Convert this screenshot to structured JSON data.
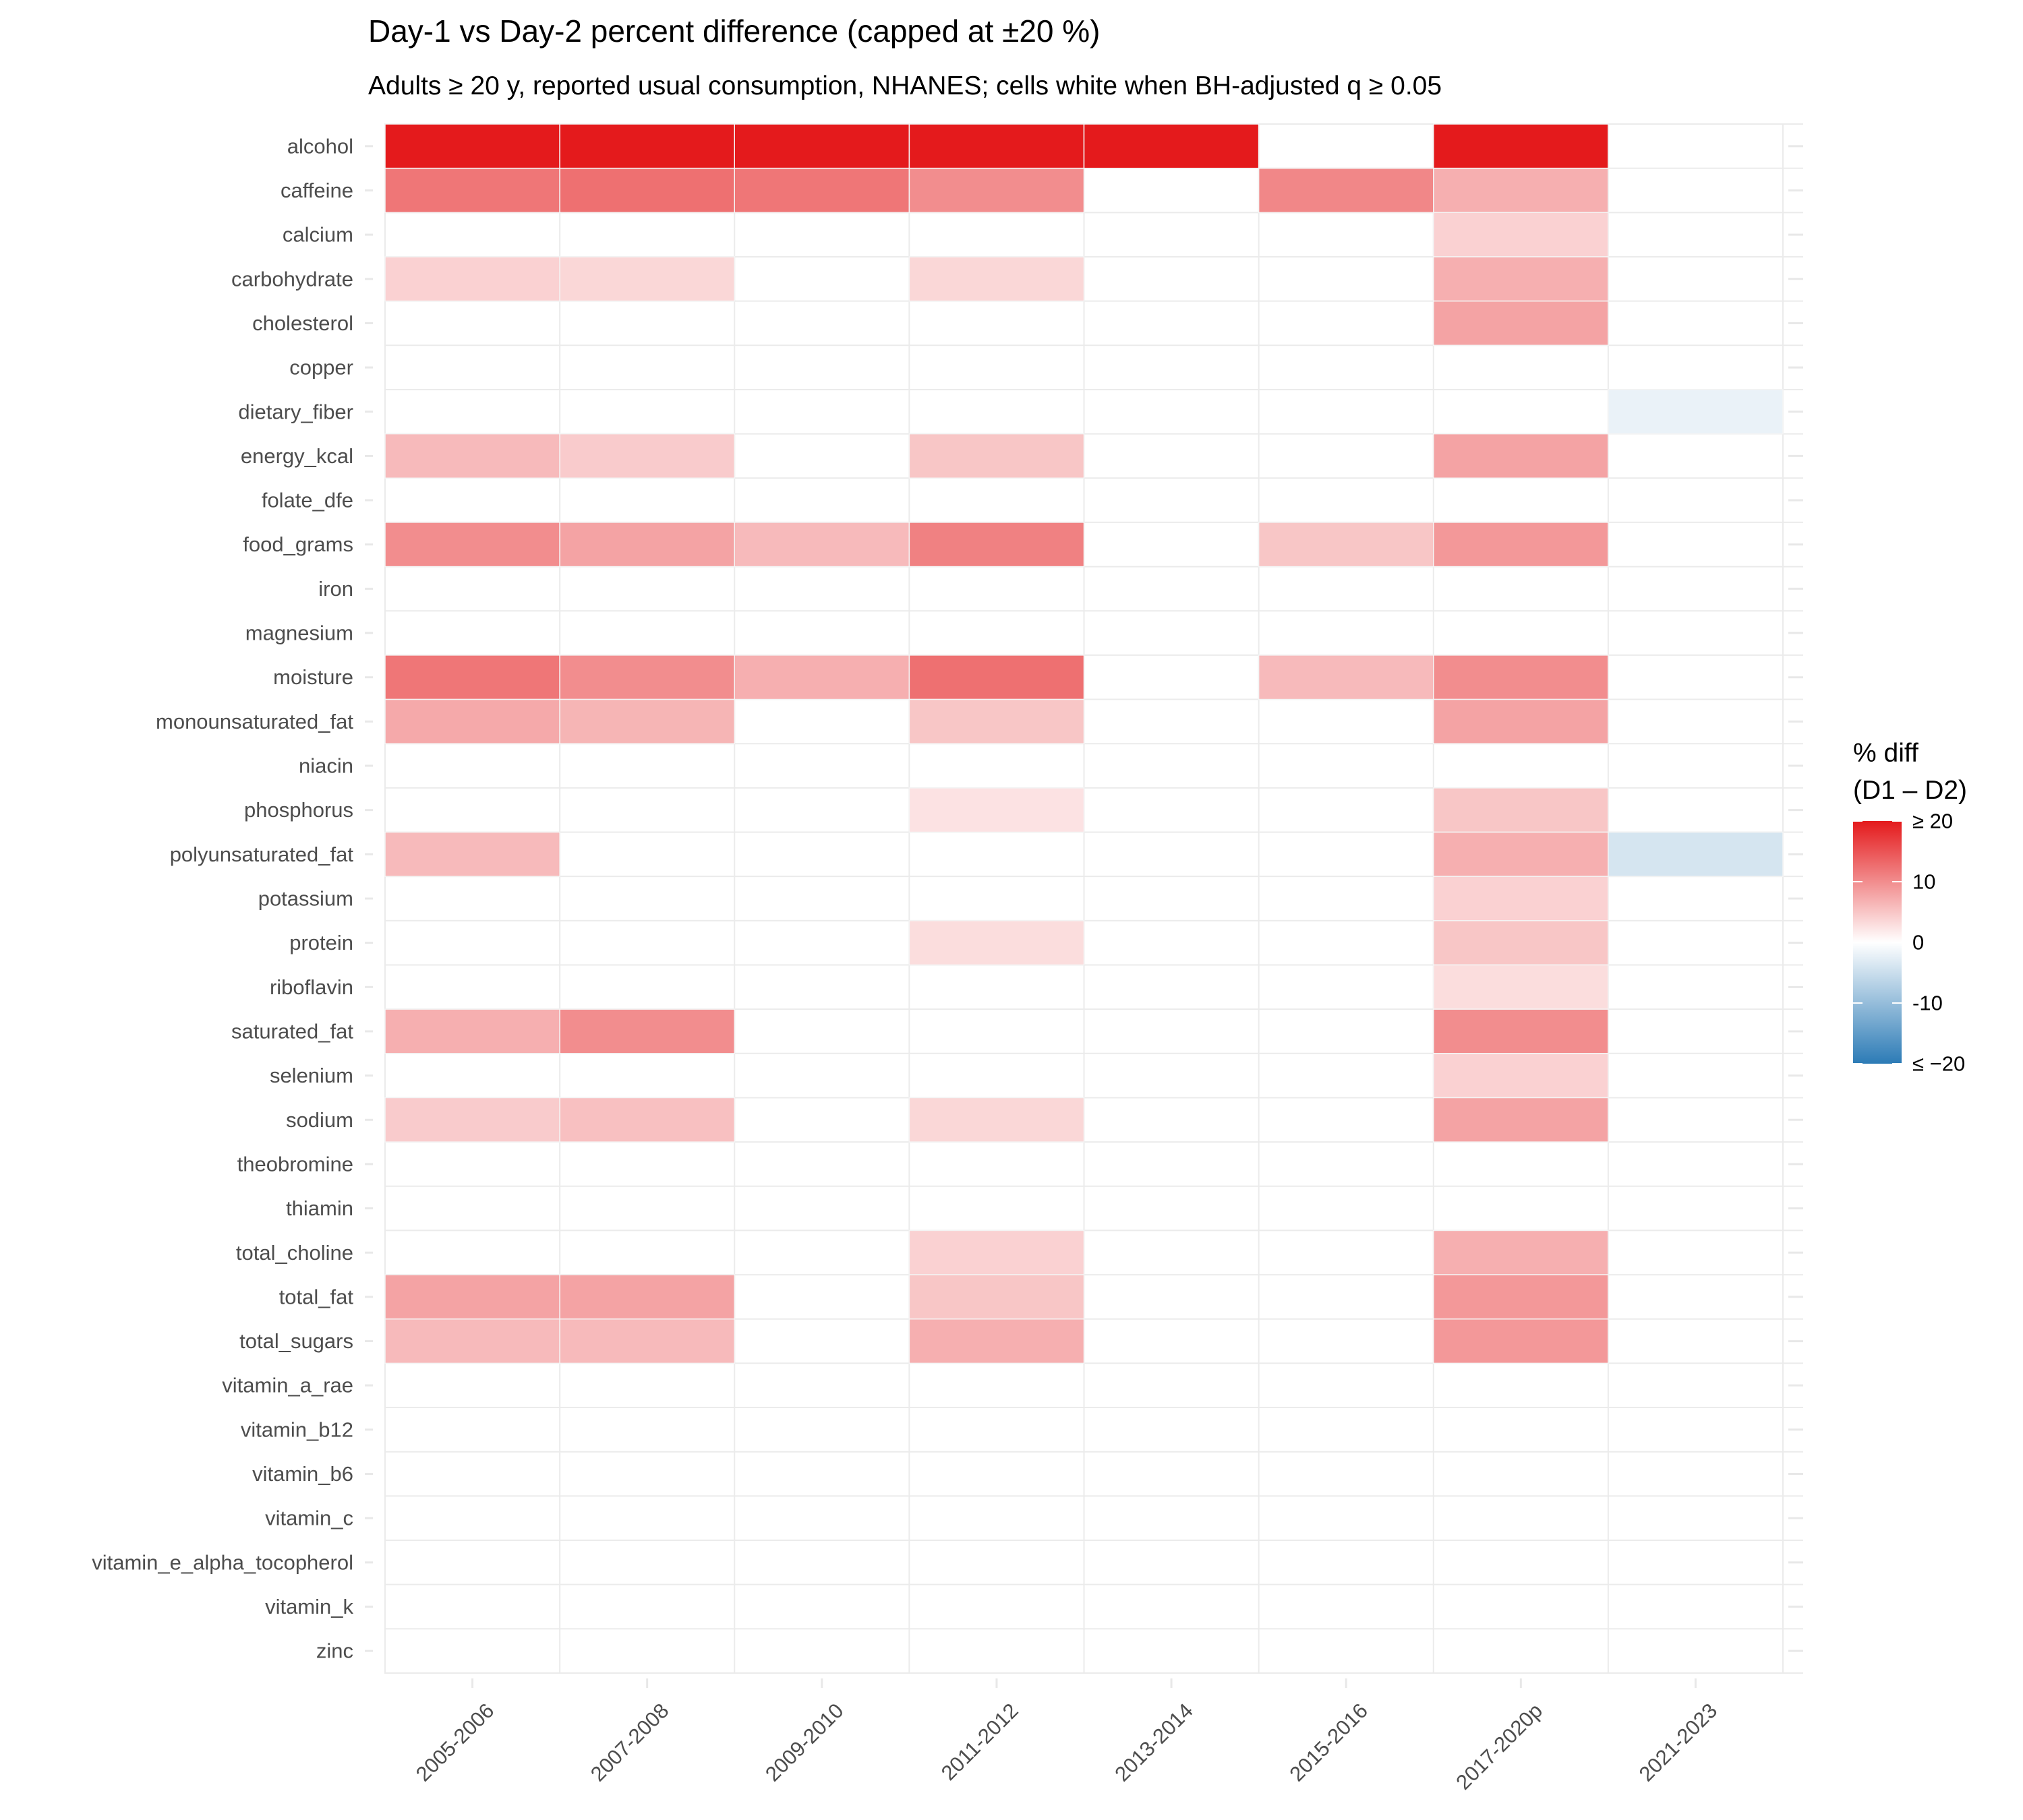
{
  "chart_data": {
    "type": "heatmap",
    "title": "Day-1 vs Day-2 percent difference (capped at ±20 %)",
    "subtitle": "Adults ≥ 20 y, reported usual consumption, NHANES; cells white when BH-adjusted q ≥ 0.05",
    "x_categories": [
      "2005-2006",
      "2007-2008",
      "2009-2010",
      "2011-2012",
      "2013-2014",
      "2015-2016",
      "2017-2020p",
      "2021-2023"
    ],
    "y_categories": [
      "alcohol",
      "caffeine",
      "calcium",
      "carbohydrate",
      "cholesterol",
      "copper",
      "dietary_fiber",
      "energy_kcal",
      "folate_dfe",
      "food_grams",
      "iron",
      "magnesium",
      "moisture",
      "monounsaturated_fat",
      "niacin",
      "phosphorus",
      "polyunsaturated_fat",
      "potassium",
      "protein",
      "riboflavin",
      "saturated_fat",
      "selenium",
      "sodium",
      "theobromine",
      "thiamin",
      "total_choline",
      "total_fat",
      "total_sugars",
      "vitamin_a_rae",
      "vitamin_b12",
      "vitamin_b6",
      "vitamin_c",
      "vitamin_e_alpha_tocopherol",
      "vitamin_k",
      "zinc"
    ],
    "values": [
      [
        20,
        20,
        20,
        20,
        20,
        null,
        20,
        null
      ],
      [
        12,
        12.5,
        12,
        10,
        null,
        10.5,
        7,
        null
      ],
      [
        null,
        null,
        null,
        null,
        null,
        null,
        4,
        null
      ],
      [
        4,
        3.5,
        null,
        3.5,
        null,
        null,
        7,
        null
      ],
      [
        null,
        null,
        null,
        null,
        null,
        null,
        8,
        null
      ],
      [
        null,
        null,
        null,
        null,
        null,
        null,
        null,
        null
      ],
      [
        null,
        null,
        null,
        null,
        null,
        null,
        null,
        -2
      ],
      [
        6,
        4.5,
        null,
        5,
        null,
        null,
        8,
        null
      ],
      [
        null,
        null,
        null,
        null,
        null,
        null,
        null,
        null
      ],
      [
        10,
        8,
        6,
        11,
        null,
        5,
        9,
        null
      ],
      [
        null,
        null,
        null,
        null,
        null,
        null,
        null,
        null
      ],
      [
        null,
        null,
        null,
        null,
        null,
        null,
        null,
        null
      ],
      [
        12,
        10,
        7,
        12.5,
        null,
        6,
        10,
        null
      ],
      [
        7.5,
        6.5,
        null,
        5,
        null,
        null,
        8,
        null
      ],
      [
        null,
        null,
        null,
        null,
        null,
        null,
        null,
        null
      ],
      [
        null,
        null,
        null,
        2.5,
        null,
        null,
        5,
        null
      ],
      [
        6,
        null,
        null,
        null,
        null,
        null,
        7,
        -4
      ],
      [
        null,
        null,
        null,
        null,
        null,
        null,
        4,
        null
      ],
      [
        null,
        null,
        null,
        3,
        null,
        null,
        5,
        null
      ],
      [
        null,
        null,
        null,
        null,
        null,
        null,
        3,
        null
      ],
      [
        7,
        10,
        null,
        null,
        null,
        null,
        10,
        null
      ],
      [
        null,
        null,
        null,
        null,
        null,
        null,
        4,
        null
      ],
      [
        4.5,
        5.5,
        null,
        3.5,
        null,
        null,
        8,
        null
      ],
      [
        null,
        null,
        null,
        null,
        null,
        null,
        null,
        null
      ],
      [
        null,
        null,
        null,
        null,
        null,
        null,
        null,
        null
      ],
      [
        null,
        null,
        null,
        4,
        null,
        null,
        7,
        null
      ],
      [
        8,
        8,
        null,
        5,
        null,
        null,
        9,
        null
      ],
      [
        6,
        6,
        null,
        7,
        null,
        null,
        9,
        null
      ],
      [
        null,
        null,
        null,
        null,
        null,
        null,
        null,
        null
      ],
      [
        null,
        null,
        null,
        null,
        null,
        null,
        null,
        null
      ],
      [
        null,
        null,
        null,
        null,
        null,
        null,
        null,
        null
      ],
      [
        null,
        null,
        null,
        null,
        null,
        null,
        null,
        null
      ],
      [
        null,
        null,
        null,
        null,
        null,
        null,
        null,
        null
      ],
      [
        null,
        null,
        null,
        null,
        null,
        null,
        null,
        null
      ],
      [
        null,
        null,
        null,
        null,
        null,
        null,
        null,
        null
      ]
    ],
    "color_scale": {
      "min": -20,
      "max": 20,
      "mid": 0,
      "low_color": "#2c7bb6",
      "mid_color": "#ffffff",
      "high_color": "#e41a1c",
      "na_color": "#ffffff"
    },
    "legend": {
      "title_line1": "% diff",
      "title_line2": "(D1 – D2)",
      "placement": "right",
      "tick_values": [
        20,
        10,
        0,
        -10,
        -20
      ],
      "tick_labels": [
        "≥ 20",
        "10",
        "0",
        "-10",
        "≤ −20"
      ]
    },
    "grid": true
  }
}
